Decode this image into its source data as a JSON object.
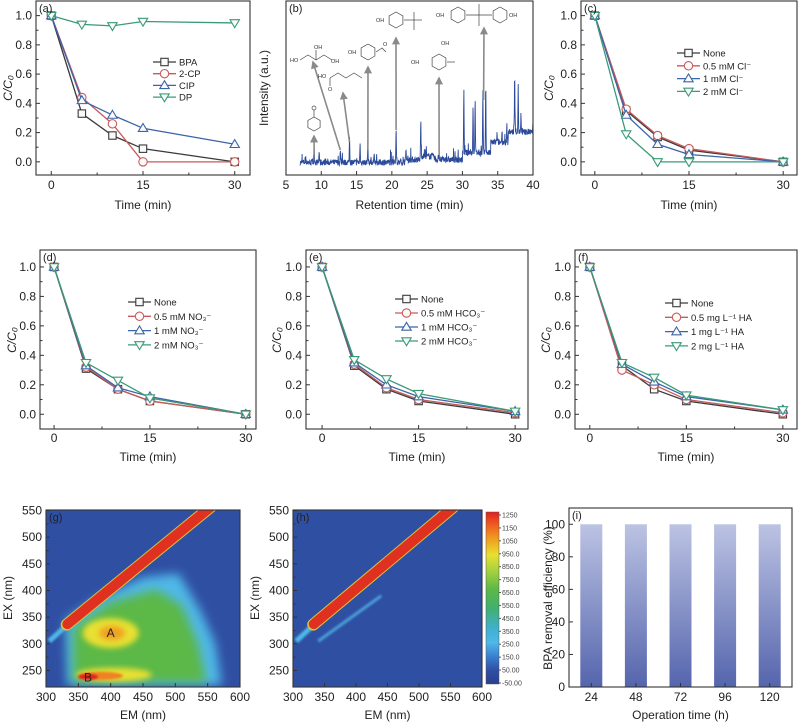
{
  "chart_data": [
    {
      "panel": "(a)",
      "type": "line",
      "xlabel": "Time (min)",
      "ylabel": "C/C₀",
      "xticks": [
        0,
        15,
        30
      ],
      "xticklabels": [
        "0",
        "15",
        "30"
      ],
      "yticks": [
        0,
        0.2,
        0.4,
        0.6,
        0.8,
        1.0
      ],
      "yticklabels": [
        "0.0",
        "0.2",
        "0.4",
        "0.6",
        "0.8",
        "1.0"
      ],
      "xlim": [
        -2.5,
        32.5
      ],
      "ylim": [
        -0.09,
        1.1
      ],
      "legend": "center-right",
      "x": [
        0,
        5,
        10,
        15,
        30
      ],
      "series": [
        {
          "name": "BPA",
          "color": "#3a3a3a",
          "marker": "square",
          "values": [
            1.0,
            0.33,
            0.18,
            0.09,
            0.0
          ]
        },
        {
          "name": "2-CP",
          "color": "#c85a5a",
          "marker": "circle",
          "values": [
            1.0,
            0.44,
            0.26,
            0.0,
            0.0
          ]
        },
        {
          "name": "CIP",
          "color": "#3c64a8",
          "marker": "triangle-up",
          "values": [
            1.0,
            0.42,
            0.32,
            0.23,
            0.12
          ]
        },
        {
          "name": "DP",
          "color": "#3a9a78",
          "marker": "triangle-down",
          "values": [
            1.0,
            0.94,
            0.93,
            0.96,
            0.95
          ]
        }
      ]
    },
    {
      "panel": "(b)",
      "type": "line",
      "xlabel": "Retention time (min)",
      "ylabel": "Intensity (a.u.)",
      "xticks": [
        5,
        10,
        15,
        20,
        25,
        30,
        35,
        40
      ],
      "xticklabels": [
        "5",
        "10",
        "15",
        "20",
        "25",
        "30",
        "35",
        "40"
      ],
      "xlim": [
        5,
        40
      ],
      "color": "#2c4a9a",
      "peaks": [
        {
          "rt": 9.0,
          "intensity": 0.1
        },
        {
          "rt": 9.7,
          "intensity": 0.12
        },
        {
          "rt": 12.7,
          "intensity": 0.12
        },
        {
          "rt": 14.0,
          "intensity": 0.2
        },
        {
          "rt": 15.5,
          "intensity": 0.16
        },
        {
          "rt": 16.6,
          "intensity": 0.15
        },
        {
          "rt": 17.5,
          "intensity": 0.12
        },
        {
          "rt": 20.6,
          "intensity": 0.27
        },
        {
          "rt": 22.0,
          "intensity": 0.12
        },
        {
          "rt": 24.1,
          "intensity": 0.3
        },
        {
          "rt": 26.7,
          "intensity": 0.1
        },
        {
          "rt": 30.2,
          "intensity": 0.46
        },
        {
          "rt": 31.5,
          "intensity": 0.38
        },
        {
          "rt": 31.8,
          "intensity": 0.42
        },
        {
          "rt": 32.9,
          "intensity": 0.46
        },
        {
          "rt": 33.3,
          "intensity": 0.5
        },
        {
          "rt": 34.9,
          "intensity": 0.22
        },
        {
          "rt": 35.6,
          "intensity": 0.24
        },
        {
          "rt": 36.3,
          "intensity": 0.27
        },
        {
          "rt": 37.4,
          "intensity": 0.56
        },
        {
          "rt": 37.9,
          "intensity": 0.46
        },
        {
          "rt": 38.3,
          "intensity": 0.3
        },
        {
          "rt": 40.0,
          "intensity": 0.27
        }
      ],
      "annotated_rt": [
        9.0,
        12.7,
        14.0,
        16.6,
        20.6,
        26.7,
        33.0
      ],
      "structure_atom_labels": {
        "oh": "OH",
        "ho": "HO",
        "o": "O"
      }
    },
    {
      "panel": "(c)",
      "type": "line",
      "xlabel": "Time (min)",
      "ylabel": "C/C₀",
      "xticks": [
        0,
        15,
        30
      ],
      "xticklabels": [
        "0",
        "15",
        "30"
      ],
      "yticks": [
        0,
        0.2,
        0.4,
        0.6,
        0.8,
        1.0
      ],
      "yticklabels": [
        "0.0",
        "0.2",
        "0.4",
        "0.6",
        "0.8",
        "1.0"
      ],
      "xlim": [
        -2.2,
        32.2
      ],
      "ylim": [
        -0.09,
        1.1
      ],
      "legend": "center-right",
      "x": [
        0,
        5,
        10,
        15,
        30
      ],
      "series": [
        {
          "name": "None",
          "color": "#3a3a3a",
          "marker": "square",
          "values": [
            1.0,
            0.35,
            0.17,
            0.08,
            0.0
          ]
        },
        {
          "name": "0.5 mM Cl⁻",
          "color": "#c85a5a",
          "marker": "circle",
          "values": [
            1.0,
            0.36,
            0.18,
            0.09,
            0.0
          ]
        },
        {
          "name": "1 mM Cl⁻",
          "color": "#3c64a8",
          "marker": "triangle-up",
          "values": [
            1.0,
            0.32,
            0.12,
            0.05,
            0.0
          ]
        },
        {
          "name": "2 mM Cl⁻",
          "color": "#3a9a78",
          "marker": "triangle-down",
          "values": [
            1.0,
            0.19,
            0.0,
            0.0,
            0.0
          ]
        }
      ]
    },
    {
      "panel": "(d)",
      "type": "line",
      "xlabel": "Time (min)",
      "ylabel": "C/C₀",
      "xticks": [
        0,
        15,
        30
      ],
      "xticklabels": [
        "0",
        "15",
        "30"
      ],
      "yticks": [
        0,
        0.2,
        0.4,
        0.6,
        0.8,
        1.0
      ],
      "yticklabels": [
        "0.0",
        "0.2",
        "0.4",
        "0.6",
        "0.8",
        "1.0"
      ],
      "xlim": [
        -2.2,
        31.6
      ],
      "ylim": [
        -0.1,
        1.115
      ],
      "legend": "center-right",
      "x": [
        0,
        5,
        10,
        15,
        30
      ],
      "series": [
        {
          "name": "None",
          "color": "#3a3a3a",
          "marker": "square",
          "values": [
            1.0,
            0.31,
            0.17,
            0.09,
            0.0
          ]
        },
        {
          "name": "0.5 mM NO₃⁻",
          "color": "#c85a5a",
          "marker": "circle",
          "values": [
            1.0,
            0.32,
            0.17,
            0.09,
            0.0
          ]
        },
        {
          "name": "1 mM NO₃⁻",
          "color": "#3c64a8",
          "marker": "triangle-up",
          "values": [
            1.0,
            0.33,
            0.18,
            0.12,
            0.0
          ]
        },
        {
          "name": "2 mM NO₃⁻",
          "color": "#3a9a78",
          "marker": "triangle-down",
          "values": [
            1.0,
            0.35,
            0.23,
            0.11,
            0.0
          ]
        }
      ]
    },
    {
      "panel": "(e)",
      "type": "line",
      "xlabel": "Time (min)",
      "ylabel": "C/C₀",
      "xticks": [
        0,
        15,
        30
      ],
      "xticklabels": [
        "0",
        "15",
        "30"
      ],
      "yticks": [
        0,
        0.2,
        0.4,
        0.6,
        0.8,
        1.0
      ],
      "yticklabels": [
        "0.0",
        "0.2",
        "0.4",
        "0.6",
        "0.8",
        "1.0"
      ],
      "xlim": [
        -2.5,
        32.0
      ],
      "ylim": [
        -0.1,
        1.115
      ],
      "legend": "center-right",
      "x": [
        0,
        5,
        10,
        15,
        30
      ],
      "series": [
        {
          "name": "None",
          "color": "#3a3a3a",
          "marker": "square",
          "values": [
            1.0,
            0.33,
            0.17,
            0.09,
            0.0
          ]
        },
        {
          "name": "0.5 mM HCO₃⁻",
          "color": "#c85a5a",
          "marker": "circle",
          "values": [
            1.0,
            0.34,
            0.18,
            0.1,
            0.01
          ]
        },
        {
          "name": "1 mM HCO₃⁻",
          "color": "#3c64a8",
          "marker": "triangle-up",
          "values": [
            1.0,
            0.35,
            0.2,
            0.12,
            0.02
          ]
        },
        {
          "name": "2 mM HCO₃⁻",
          "color": "#3a9a78",
          "marker": "triangle-down",
          "values": [
            1.0,
            0.37,
            0.24,
            0.14,
            0.02
          ]
        }
      ]
    },
    {
      "panel": "(f)",
      "type": "line",
      "xlabel": "Time (min)",
      "ylabel": "C/C₀",
      "xticks": [
        0,
        15,
        30
      ],
      "xticklabels": [
        "0",
        "15",
        "30"
      ],
      "yticks": [
        0,
        0.2,
        0.4,
        0.6,
        0.8,
        1.0
      ],
      "yticklabels": [
        "0.0",
        "0.2",
        "0.4",
        "0.6",
        "0.8",
        "1.0"
      ],
      "xlim": [
        -2.3,
        32.2
      ],
      "ylim": [
        -0.1,
        1.115
      ],
      "legend": "center-right",
      "x": [
        0,
        5,
        10,
        15,
        30
      ],
      "series": [
        {
          "name": "None",
          "color": "#3a3a3a",
          "marker": "square",
          "values": [
            1.0,
            0.33,
            0.17,
            0.09,
            0.0
          ]
        },
        {
          "name": "0.5 mg L⁻¹ HA",
          "color": "#c85a5a",
          "marker": "circle",
          "values": [
            1.0,
            0.3,
            0.2,
            0.1,
            0.01
          ]
        },
        {
          "name": "1 mg L⁻¹ HA",
          "color": "#3c64a8",
          "marker": "triangle-up",
          "values": [
            1.0,
            0.34,
            0.22,
            0.12,
            0.03
          ]
        },
        {
          "name": "2 mg L⁻¹ HA",
          "color": "#3a9a78",
          "marker": "triangle-down",
          "values": [
            1.0,
            0.35,
            0.25,
            0.13,
            0.03
          ]
        }
      ]
    },
    {
      "panel": "(g)",
      "type": "heatmap",
      "xlabel": "EM (nm)",
      "ylabel": "EX (nm)",
      "xticks": [
        300,
        350,
        400,
        450,
        500,
        550,
        600
      ],
      "xticklabels": [
        "300",
        "350",
        "400",
        "450",
        "500",
        "550",
        "600"
      ],
      "yticks": [
        250,
        300,
        350,
        400,
        450,
        500,
        550
      ],
      "yticklabels": [
        "250",
        "300",
        "350",
        "400",
        "450",
        "500",
        "550"
      ],
      "xlim": [
        300,
        600
      ],
      "ylim": [
        219,
        551
      ],
      "annotations": [
        {
          "text": "A",
          "em": 400,
          "ex": 320
        },
        {
          "text": "B",
          "em": 365,
          "ex": 237
        }
      ]
    },
    {
      "panel": "(h)",
      "type": "heatmap",
      "xlabel": "EM (nm)",
      "ylabel": "EX (nm)",
      "xticks": [
        300,
        350,
        400,
        450,
        500,
        550,
        600
      ],
      "xticklabels": [
        "300",
        "350",
        "400",
        "450",
        "500",
        "550",
        "600"
      ],
      "yticks": [
        250,
        300,
        350,
        400,
        450,
        500,
        550
      ],
      "yticklabels": [
        "250",
        "300",
        "350",
        "400",
        "450",
        "500",
        "550"
      ],
      "xlim": [
        300,
        600
      ],
      "ylim": [
        219,
        551
      ],
      "colorbar_labels": [
        "1250",
        "1150",
        "1050",
        "950.0",
        "850.0",
        "750.0",
        "650.0",
        "550.0",
        "450.0",
        "350.0",
        "250.0",
        "150.0",
        "50.00",
        "-50.00"
      ]
    },
    {
      "panel": "(i)",
      "type": "bar",
      "xlabel": "Operation time (h)",
      "ylabel": "BPA removal efficiency (%)",
      "categories": [
        "24",
        "48",
        "72",
        "96",
        "120"
      ],
      "values": [
        100,
        100,
        100,
        100,
        100
      ],
      "yticks": [
        0,
        20,
        40,
        60,
        80,
        100
      ],
      "yticklabels": [
        "0",
        "20",
        "40",
        "60",
        "80",
        "100"
      ],
      "ylim": [
        0,
        110
      ],
      "bar_color_top": "#bcc3e3",
      "bar_color_bottom": "#5565ad"
    }
  ]
}
